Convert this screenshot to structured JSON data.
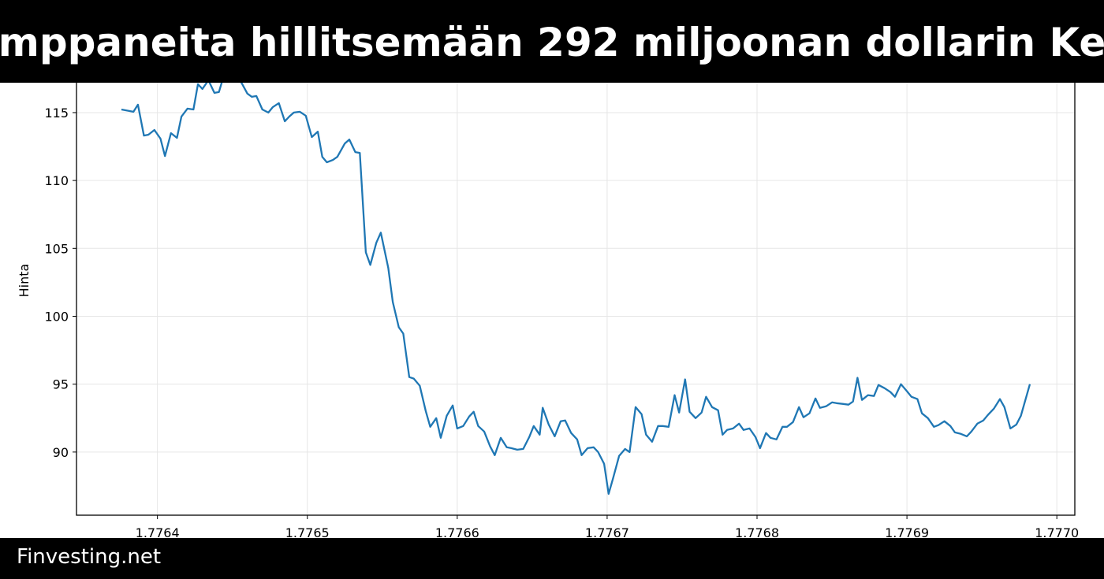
{
  "banner": {
    "title": "mppaneita hillitsemään 292 miljoonan dollarin Ke"
  },
  "footer": {
    "brand": "Finvesting.net"
  },
  "chart_data": {
    "type": "line",
    "title": "mppaneita hillitsemään 292 miljoonan dollarin Ke",
    "xlabel": "",
    "ylabel": "Hinta",
    "xlim": [
      1.776346,
      1.777012
    ],
    "ylim": [
      85.35,
      119.87
    ],
    "xticks": [
      1.7764,
      1.7765,
      1.7766,
      1.7767,
      1.7768,
      1.7769,
      1.777
    ],
    "xtick_labels": [
      "1.7764",
      "1.7765",
      "1.7766",
      "1.7767",
      "1.7768",
      "1.7769",
      "1.7770"
    ],
    "yticks": [
      90,
      95,
      100,
      105,
      110,
      115
    ],
    "ytick_labels": [
      "90",
      "95",
      "100",
      "105",
      "110",
      "115"
    ],
    "grid": true,
    "line_color": "#1f77b4",
    "series": [
      {
        "x": [
          1.776376,
          1.776384,
          1.776387,
          1.776391,
          1.776394,
          1.776398,
          1.776402,
          1.776405,
          1.776409,
          1.776413,
          1.776416,
          1.77642,
          1.776424,
          1.776427,
          1.77643,
          1.776434,
          1.776438,
          1.776441,
          1.776445,
          1.776448,
          1.776452,
          1.776456,
          1.77646,
          1.776463,
          1.776466,
          1.77647,
          1.776474,
          1.776477,
          1.776481,
          1.776485,
          1.776488,
          1.776491,
          1.776495,
          1.776499,
          1.776503,
          1.776507,
          1.77651,
          1.776513,
          1.776517,
          1.77652,
          1.776525,
          1.776528,
          1.776532,
          1.776535,
          1.776539,
          1.776542,
          1.776546,
          1.776549,
          1.776554,
          1.776557,
          1.776561,
          1.776564,
          1.776568,
          1.776571,
          1.776575,
          1.776579,
          1.776582,
          1.776586,
          1.776589,
          1.776593,
          1.776597,
          1.7766,
          1.776604,
          1.776608,
          1.776611,
          1.776614,
          1.776618,
          1.776622,
          1.776625,
          1.776629,
          1.776633,
          1.776636,
          1.77664,
          1.776644,
          1.776648,
          1.776651,
          1.776655,
          1.776657,
          1.776661,
          1.776665,
          1.776669,
          1.776672,
          1.776676,
          1.77668,
          1.776683,
          1.776687,
          1.776691,
          1.776694,
          1.776698,
          1.776701,
          1.776704,
          1.776708,
          1.776712,
          1.776715,
          1.776719,
          1.776723,
          1.776726,
          1.77673,
          1.776734,
          1.776737,
          1.776741,
          1.776745,
          1.776748,
          1.776752,
          1.776755,
          1.776759,
          1.776763,
          1.776766,
          1.77677,
          1.776774,
          1.776777,
          1.77678,
          1.776784,
          1.776788,
          1.776791,
          1.776795,
          1.776799,
          1.776802,
          1.776806,
          1.776809,
          1.776813,
          1.776817,
          1.77682,
          1.776824,
          1.776828,
          1.776831,
          1.776835,
          1.776839,
          1.776842,
          1.776846,
          1.77685,
          1.776853,
          1.776857,
          1.776861,
          1.776864,
          1.776867,
          1.77687,
          1.776874,
          1.776878,
          1.776881,
          1.776885,
          1.776889,
          1.776892,
          1.776896,
          1.7769,
          1.776903,
          1.776907,
          1.77691,
          1.776914,
          1.776918,
          1.776921,
          1.776925,
          1.776929,
          1.776932,
          1.776936,
          1.77694,
          1.776943,
          1.776947,
          1.776951,
          1.776954,
          1.776958,
          1.776962,
          1.776965,
          1.776969,
          1.776973,
          1.776976,
          1.776982
        ],
        "y": [
          115.23,
          115.06,
          115.58,
          113.31,
          113.37,
          113.72,
          113.08,
          111.8,
          113.49,
          113.14,
          114.71,
          115.29,
          115.23,
          117.09,
          116.74,
          117.38,
          116.45,
          116.51,
          118.0,
          118.3,
          117.8,
          117.21,
          116.4,
          116.16,
          116.22,
          115.23,
          115.0,
          115.41,
          115.7,
          114.36,
          114.71,
          115.0,
          115.06,
          114.77,
          113.2,
          113.6,
          111.74,
          111.34,
          111.51,
          111.74,
          112.73,
          113.02,
          112.09,
          112.03,
          104.71,
          103.78,
          105.41,
          106.16,
          103.55,
          101.05,
          99.19,
          98.72,
          95.52,
          95.41,
          94.88,
          93.02,
          91.86,
          92.5,
          91.05,
          92.67,
          93.43,
          91.74,
          91.92,
          92.62,
          92.97,
          91.92,
          91.51,
          90.41,
          89.77,
          91.05,
          90.35,
          90.29,
          90.17,
          90.23,
          91.1,
          91.92,
          91.28,
          93.26,
          92.03,
          91.16,
          92.27,
          92.33,
          91.4,
          90.93,
          89.77,
          90.29,
          90.35,
          90.0,
          89.13,
          86.92,
          88.08,
          89.71,
          90.23,
          90.0,
          93.31,
          92.79,
          91.28,
          90.76,
          91.92,
          91.92,
          91.86,
          94.19,
          92.91,
          95.35,
          92.97,
          92.5,
          92.91,
          94.07,
          93.31,
          93.08,
          91.28,
          91.63,
          91.74,
          92.09,
          91.63,
          91.74,
          91.1,
          90.29,
          91.4,
          91.05,
          90.93,
          91.86,
          91.86,
          92.21,
          93.31,
          92.56,
          92.85,
          93.95,
          93.26,
          93.37,
          93.66,
          93.6,
          93.55,
          93.49,
          93.72,
          95.47,
          93.84,
          94.19,
          94.13,
          94.94,
          94.71,
          94.42,
          94.07,
          95.0,
          94.48,
          94.07,
          93.9,
          92.85,
          92.5,
          91.86,
          91.98,
          92.27,
          91.92,
          91.45,
          91.34,
          91.16,
          91.51,
          92.09,
          92.33,
          92.73,
          93.2,
          93.9,
          93.31,
          91.74,
          92.03,
          92.67,
          95.0
        ]
      }
    ]
  }
}
